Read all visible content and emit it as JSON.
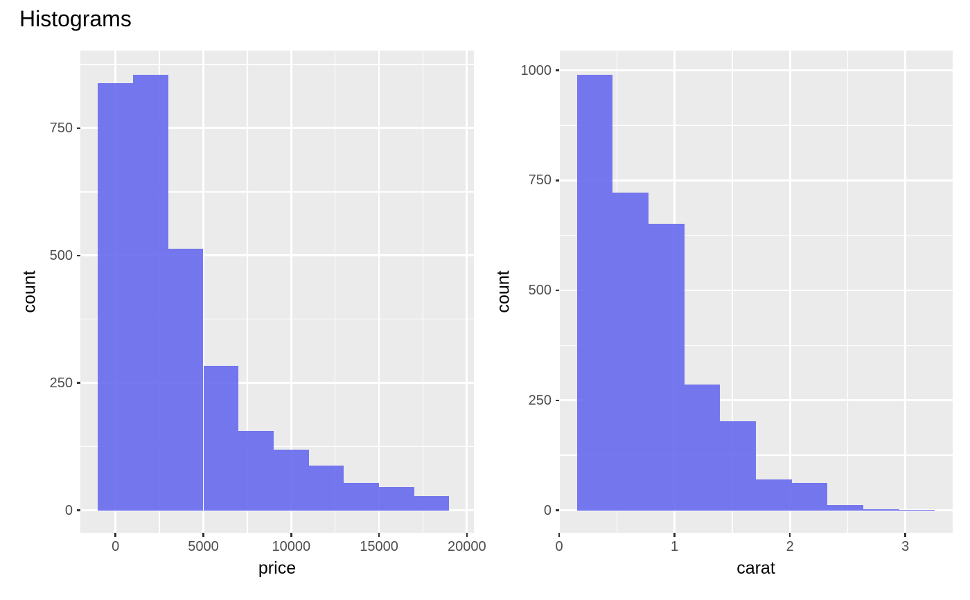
{
  "title": "Histograms",
  "colors": {
    "bar_fill": "#7476EE",
    "bar_fill_base_rgb": "103,105,238",
    "bar_alpha": 0.9,
    "panel_background": "#EBEBEB",
    "gridline": "#FFFFFF",
    "tick_label": "#4D4D4D",
    "tick_mark": "#333333",
    "axis_title": "#000000",
    "plot_title": "#000000",
    "figure_background": "#FFFFFF"
  },
  "chart_data": [
    {
      "type": "bar",
      "subtype": "histogram",
      "title": "",
      "xlabel": "price",
      "ylabel": "count",
      "xlim": [
        -2000,
        20400
      ],
      "ylim": [
        -44,
        902
      ],
      "grid": true,
      "legend": "none",
      "x_tick_values": [
        0,
        5000,
        10000,
        15000,
        20000
      ],
      "x_tick_labels": [
        "0",
        "5000",
        "10000",
        "15000",
        "20000"
      ],
      "y_tick_values": [
        0,
        250,
        500,
        750
      ],
      "y_tick_labels": [
        "0",
        "250",
        "500",
        "750"
      ],
      "x_minor_gridlines": [
        2500,
        7500,
        12500,
        17500
      ],
      "y_minor_gridlines": [
        125,
        375,
        625,
        875
      ],
      "binwidth": 2000,
      "bins": [
        {
          "x0": -1000,
          "x1": 1000,
          "count": 838
        },
        {
          "x0": 1000,
          "x1": 3000,
          "count": 854
        },
        {
          "x0": 3000,
          "x1": 5000,
          "count": 513
        },
        {
          "x0": 5000,
          "x1": 7000,
          "count": 284
        },
        {
          "x0": 7000,
          "x1": 9000,
          "count": 156
        },
        {
          "x0": 9000,
          "x1": 11000,
          "count": 119
        },
        {
          "x0": 11000,
          "x1": 13000,
          "count": 88
        },
        {
          "x0": 13000,
          "x1": 15000,
          "count": 54
        },
        {
          "x0": 15000,
          "x1": 17000,
          "count": 46
        },
        {
          "x0": 17000,
          "x1": 19000,
          "count": 28
        }
      ]
    },
    {
      "type": "bar",
      "subtype": "histogram",
      "title": "",
      "xlabel": "carat",
      "ylabel": "count",
      "xlim": [
        0,
        3.41
      ],
      "ylim": [
        -51,
        1045
      ],
      "grid": true,
      "legend": "none",
      "x_tick_values": [
        0,
        1,
        2,
        3
      ],
      "x_tick_labels": [
        "0",
        "1",
        "2",
        "3"
      ],
      "y_tick_values": [
        0,
        250,
        500,
        750,
        1000
      ],
      "y_tick_labels": [
        "0",
        "250",
        "500",
        "750",
        "1000"
      ],
      "x_minor_gridlines": [
        0.5,
        1.5,
        2.5
      ],
      "y_minor_gridlines": [
        125,
        375,
        625,
        875
      ],
      "binwidth": 0.31,
      "bins": [
        {
          "x0": 0.155,
          "x1": 0.465,
          "count": 990
        },
        {
          "x0": 0.465,
          "x1": 0.775,
          "count": 722
        },
        {
          "x0": 0.775,
          "x1": 1.085,
          "count": 651
        },
        {
          "x0": 1.085,
          "x1": 1.395,
          "count": 286
        },
        {
          "x0": 1.395,
          "x1": 1.705,
          "count": 202
        },
        {
          "x0": 1.705,
          "x1": 2.015,
          "count": 71
        },
        {
          "x0": 2.015,
          "x1": 2.325,
          "count": 63
        },
        {
          "x0": 2.325,
          "x1": 2.635,
          "count": 12
        },
        {
          "x0": 2.635,
          "x1": 2.945,
          "count": 2
        },
        {
          "x0": 2.945,
          "x1": 3.255,
          "count": 1
        }
      ]
    }
  ]
}
